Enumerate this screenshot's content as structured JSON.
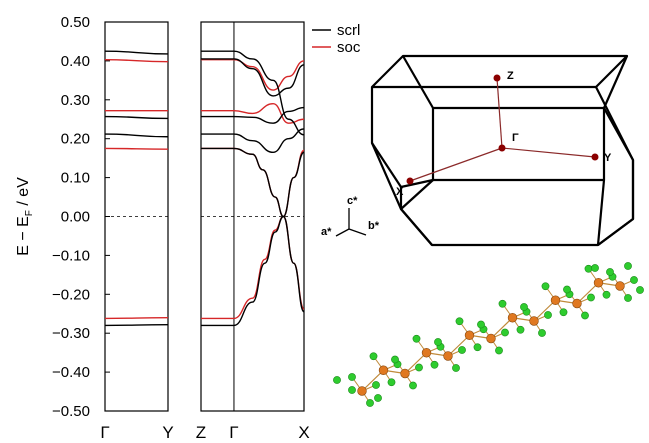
{
  "chart_data": {
    "type": "line",
    "ylabel": "E − E",
    "ylabel_sub": "F",
    "ylabel_unit": " / eV",
    "ylim": [
      -0.5,
      0.5
    ],
    "yticks": [
      "0.50",
      "0.40",
      "0.30",
      "0.20",
      "0.10",
      "0.00",
      "−0.10",
      "−0.20",
      "−0.30",
      "−0.40",
      "−0.50"
    ],
    "fermi_level": 0.0,
    "legend": [
      {
        "name": "scrl",
        "color": "#000000"
      },
      {
        "name": "soc",
        "color": "#d62728"
      }
    ],
    "panels": [
      {
        "kpoints": [
          "Γ",
          "Y"
        ],
        "series": [
          {
            "name": "scrl",
            "bands": [
              [
                [
                  0,
                  0.425
                ],
                [
                  1,
                  0.418
                ]
              ],
              [
                [
                  0,
                  0.257
                ],
                [
                  1,
                  0.252
                ]
              ],
              [
                [
                  0,
                  0.212
                ],
                [
                  1,
                  0.205
                ]
              ],
              [
                [
                  0,
                  -0.28
                ],
                [
                  1,
                  -0.278
                ]
              ]
            ]
          },
          {
            "name": "soc",
            "bands": [
              [
                [
                  0,
                  0.403
                ],
                [
                  1,
                  0.398
                ]
              ],
              [
                [
                  0,
                  0.272
                ],
                [
                  1,
                  0.272
                ]
              ],
              [
                [
                  0,
                  0.175
                ],
                [
                  1,
                  0.173
                ]
              ],
              [
                [
                  0,
                  -0.262
                ],
                [
                  1,
                  -0.26
                ]
              ]
            ]
          }
        ]
      },
      {
        "kpoints": [
          "Z",
          "Γ",
          "X"
        ],
        "kpoint_positions": [
          0,
          0.32,
          1
        ],
        "series": [
          {
            "name": "scrl",
            "bands": [
              [
                [
                  0,
                  0.425
                ],
                [
                  0.32,
                  0.425
                ],
                [
                  0.5,
                  0.405
                ],
                [
                  0.7,
                  0.35
                ],
                [
                  0.85,
                  0.25
                ],
                [
                  1,
                  0.21
                ]
              ],
              [
                [
                  0,
                  0.405
                ],
                [
                  0.32,
                  0.405
                ],
                [
                  0.5,
                  0.38
                ],
                [
                  0.7,
                  0.31
                ],
                [
                  0.85,
                  0.33
                ],
                [
                  1,
                  0.39
                ]
              ],
              [
                [
                  0,
                  0.257
                ],
                [
                  0.32,
                  0.257
                ],
                [
                  0.5,
                  0.255
                ],
                [
                  0.7,
                  0.24
                ],
                [
                  0.85,
                  0.27
                ],
                [
                  1,
                  0.28
                ]
              ],
              [
                [
                  0,
                  0.212
                ],
                [
                  0.32,
                  0.212
                ],
                [
                  0.5,
                  0.195
                ],
                [
                  0.7,
                  0.165
                ],
                [
                  0.85,
                  0.2
                ],
                [
                  1,
                  0.225
                ]
              ],
              [
                [
                  0,
                  0.175
                ],
                [
                  0.32,
                  0.175
                ],
                [
                  0.5,
                  0.16
                ],
                [
                  0.6,
                  0.12
                ],
                [
                  0.72,
                  0.05
                ],
                [
                  0.8,
                  0.0
                ],
                [
                  0.9,
                  -0.12
                ],
                [
                  1,
                  -0.245
                ]
              ],
              [
                [
                  0,
                  -0.28
                ],
                [
                  0.32,
                  -0.28
                ],
                [
                  0.5,
                  -0.22
                ],
                [
                  0.62,
                  -0.12
                ],
                [
                  0.72,
                  -0.04
                ],
                [
                  0.8,
                  0.0
                ],
                [
                  0.9,
                  0.1
                ],
                [
                  1,
                  0.165
                ]
              ]
            ]
          },
          {
            "name": "soc",
            "bands": [
              [
                [
                  0,
                  0.403
                ],
                [
                  0.32,
                  0.403
                ],
                [
                  0.5,
                  0.385
                ],
                [
                  0.7,
                  0.325
                ],
                [
                  0.85,
                  0.36
                ],
                [
                  1,
                  0.4
                ]
              ],
              [
                [
                  0,
                  0.272
                ],
                [
                  0.32,
                  0.272
                ],
                [
                  0.5,
                  0.265
                ],
                [
                  0.7,
                  0.29
                ],
                [
                  0.85,
                  0.24
                ],
                [
                  1,
                  0.25
                ]
              ],
              [
                [
                  0,
                  0.175
                ],
                [
                  0.32,
                  0.175
                ],
                [
                  0.5,
                  0.16
                ],
                [
                  0.6,
                  0.12
                ],
                [
                  0.72,
                  0.05
                ],
                [
                  0.8,
                  0.0
                ],
                [
                  0.9,
                  -0.12
                ],
                [
                  1,
                  -0.238
                ]
              ],
              [
                [
                  0,
                  -0.262
                ],
                [
                  0.32,
                  -0.262
                ],
                [
                  0.5,
                  -0.21
                ],
                [
                  0.62,
                  -0.11
                ],
                [
                  0.72,
                  -0.035
                ],
                [
                  0.8,
                  0.0
                ],
                [
                  0.9,
                  0.1
                ],
                [
                  1,
                  0.17
                ]
              ]
            ]
          }
        ]
      }
    ]
  },
  "brillouin_zone": {
    "points": [
      "Z",
      "Γ",
      "Y",
      "X"
    ],
    "axes": [
      "c*",
      "a*",
      "b*"
    ],
    "point_color": "#8b0000",
    "line_color": "#8b2a2a"
  },
  "structure": {
    "atom_colors": {
      "green": "#2ecc2e",
      "orange": "#e07820"
    }
  }
}
